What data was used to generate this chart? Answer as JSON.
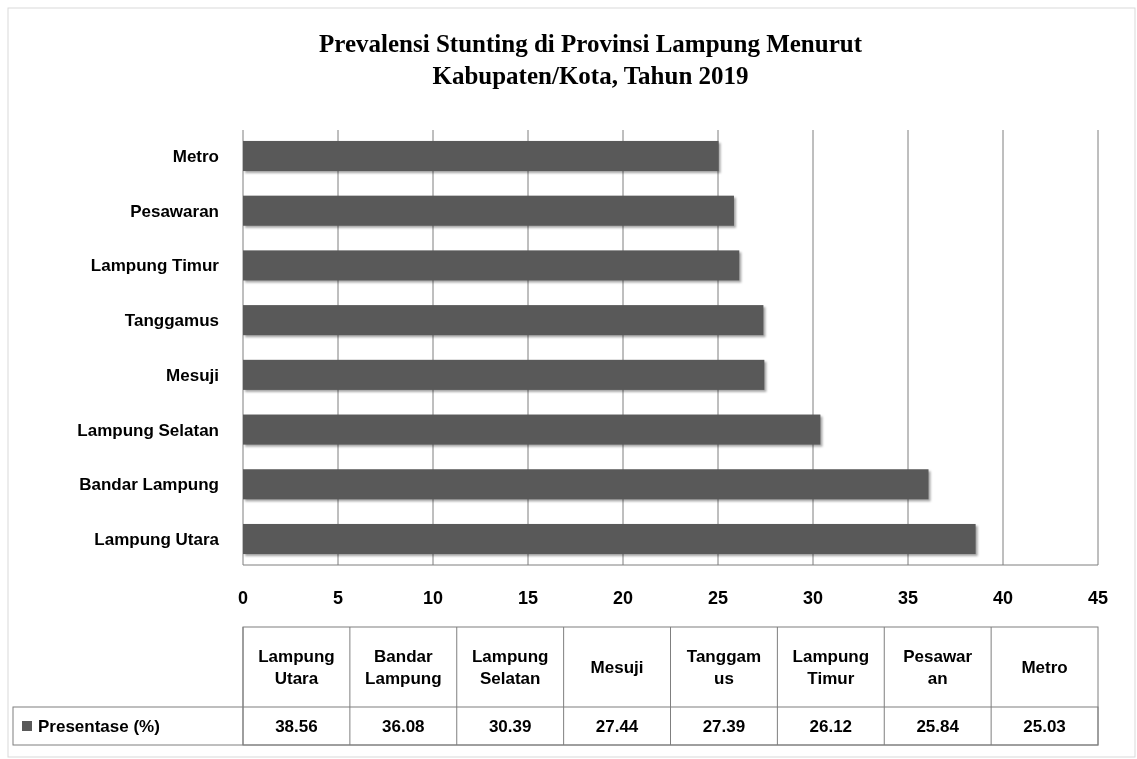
{
  "chart_data": {
    "type": "bar",
    "orientation": "horizontal",
    "title": "Prevalensi Stunting di Provinsi Lampung Menurut\nKabupaten/Kota, Tahun 2019",
    "categories": [
      "Metro",
      "Pesawaran",
      "Lampung Timur",
      "Tanggamus",
      "Mesuji",
      "Lampung Selatan",
      "Bandar Lampung",
      "Lampung Utara"
    ],
    "series": [
      {
        "name": "Presentase (%)",
        "color": "#595959",
        "values": [
          25.03,
          25.84,
          26.12,
          27.39,
          27.44,
          30.39,
          36.08,
          38.56
        ]
      }
    ],
    "xlim": [
      0,
      45
    ],
    "xticks": [
      0,
      5,
      10,
      15,
      20,
      25,
      30,
      35,
      40,
      45
    ],
    "grid": "x",
    "legend": "bottom",
    "annotations": [
      "Lampung\nUtara",
      "Bandar\nLampung",
      "Lampung\nSelatan",
      "Mesuji",
      "Tanggam\nus",
      "Lampung\nTimur",
      "Pesawar\nan",
      "Metro",
      "38.56",
      "36.08",
      "30.39",
      "27.44",
      "27.39",
      "26.12",
      "25.84",
      "25.03"
    ]
  }
}
